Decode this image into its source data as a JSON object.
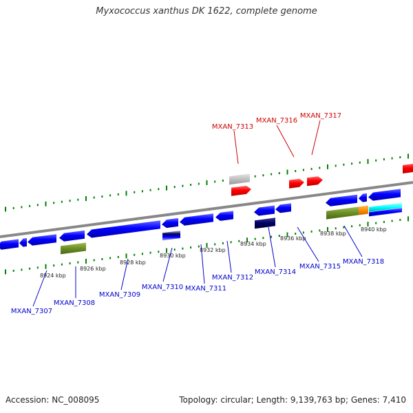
{
  "title": "Myxococcus xanthus DK 1622, complete genome",
  "footer": {
    "accession": "Accession: NC_008095",
    "topology": "Topology: circular; Length: 9,139,763 bp; Genes: 7,410"
  },
  "colors": {
    "forward_gene": "#ff0000",
    "reverse_gene": "#0000ff",
    "backbone": "#888888",
    "tick": "#008000",
    "forward_label": "#cc0000",
    "reverse_label": "#0000cc",
    "feature_olive": "#6b8e23",
    "feature_gray": "#c0c0c0",
    "feature_orange": "#ff8c00",
    "feature_cyan": "#00ffff",
    "feature_navy": "#000066"
  },
  "scale_labels": [
    "8924 kbp",
    "8926 kbp",
    "8928 kbp",
    "8930 kbp",
    "8932 kbp",
    "8934 kbp",
    "8936 kbp",
    "8938 kbp",
    "8940 kbp"
  ],
  "forward_gene_labels": [
    "MXAN_7313",
    "MXAN_7316",
    "MXAN_7317"
  ],
  "reverse_gene_labels": [
    "MXAN_7307",
    "MXAN_7308",
    "MXAN_7309",
    "MXAN_7310",
    "MXAN_7311",
    "MXAN_7312",
    "MXAN_7314",
    "MXAN_7315",
    "MXAN_7318"
  ]
}
